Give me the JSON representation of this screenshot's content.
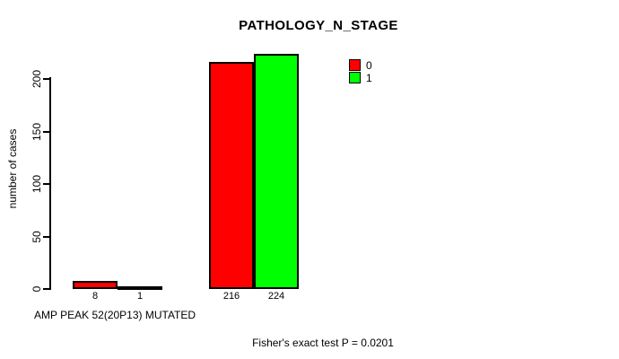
{
  "chart_data": {
    "type": "bar",
    "title": "PATHOLOGY_N_STAGE",
    "ylabel": "number of cases",
    "xlabel": "AMP PEAK 52(20P13) MUTATED",
    "annotation": "Fisher's exact test P = 0.0201",
    "yticks": [
      0,
      50,
      100,
      150,
      200
    ],
    "ylim": [
      0,
      238
    ],
    "grid": false,
    "legend_position": "top-right-inside",
    "legend": [
      {
        "label": "0",
        "color": "#ff0000"
      },
      {
        "label": "1",
        "color": "#00ff00"
      }
    ],
    "groups": [
      {
        "name": "group-1",
        "bars": [
          {
            "series": "0",
            "value": 8,
            "color": "#ff0000"
          },
          {
            "series": "1",
            "value": 1,
            "color": "#00ff00"
          }
        ]
      },
      {
        "name": "group-2",
        "bars": [
          {
            "series": "0",
            "value": 216,
            "color": "#ff0000"
          },
          {
            "series": "1",
            "value": 224,
            "color": "#00ff00"
          }
        ]
      }
    ]
  }
}
